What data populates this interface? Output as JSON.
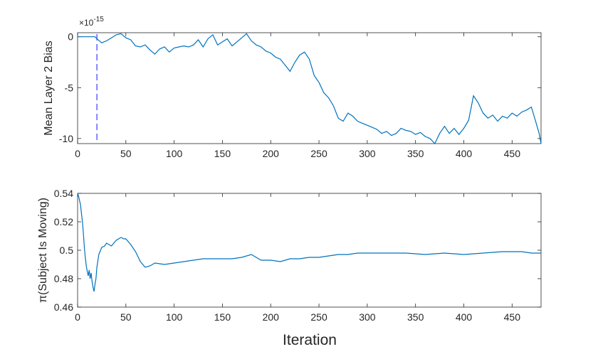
{
  "figure": {
    "xlabel": "Iteration",
    "line_color": "#0072bd",
    "marker_color": "#3a3aff",
    "axis_color": "#262626"
  },
  "chart_data": [
    {
      "type": "line",
      "title": "",
      "ylabel": "Mean Layer 2 Bias",
      "xlabel": "",
      "exponent_label": "×10",
      "exponent_power": "-15",
      "xlim": [
        0,
        480
      ],
      "ylim": [
        -10.5,
        0.4
      ],
      "xticks": [
        0,
        50,
        100,
        150,
        200,
        250,
        300,
        350,
        400,
        450
      ],
      "yticks": [
        -10,
        -5,
        0
      ],
      "ytick_labels": [
        "-10",
        "-5",
        "0"
      ],
      "vline_x": 20,
      "series": [
        {
          "x": [
            0,
            18,
            20,
            25,
            30,
            35,
            40,
            45,
            50,
            55,
            60,
            65,
            70,
            75,
            80,
            85,
            90,
            95,
            100,
            105,
            110,
            115,
            120,
            125,
            130,
            135,
            140,
            145,
            150,
            155,
            160,
            165,
            170,
            175,
            180,
            185,
            190,
            195,
            200,
            205,
            210,
            215,
            220,
            225,
            230,
            235,
            240,
            245,
            250,
            255,
            260,
            265,
            270,
            275,
            280,
            285,
            290,
            295,
            300,
            305,
            310,
            315,
            320,
            325,
            330,
            335,
            340,
            345,
            350,
            355,
            360,
            365,
            370,
            375,
            380,
            385,
            390,
            395,
            400,
            405,
            410,
            415,
            420,
            425,
            430,
            435,
            440,
            445,
            450,
            455,
            460,
            465,
            470,
            475,
            478,
            480
          ],
          "values": [
            0.0,
            0.0,
            -0.2,
            -0.6,
            -0.4,
            -0.1,
            0.2,
            0.3,
            -0.1,
            -0.3,
            -0.9,
            -1.0,
            -0.8,
            -1.3,
            -1.7,
            -1.2,
            -1.0,
            -1.5,
            -1.1,
            -1.0,
            -0.9,
            -1.0,
            -0.8,
            -0.3,
            -1.0,
            -0.2,
            0.2,
            -0.8,
            -0.5,
            -0.2,
            -0.9,
            -0.5,
            -0.1,
            0.3,
            -0.4,
            -0.8,
            -1.0,
            -1.4,
            -1.6,
            -2.0,
            -2.2,
            -2.8,
            -3.4,
            -2.5,
            -1.8,
            -1.5,
            -2.2,
            -3.8,
            -4.5,
            -5.5,
            -6.0,
            -6.8,
            -8.0,
            -8.3,
            -7.5,
            -7.8,
            -8.3,
            -8.5,
            -8.7,
            -8.9,
            -9.1,
            -9.5,
            -9.3,
            -9.7,
            -9.5,
            -9.0,
            -9.2,
            -9.3,
            -9.6,
            -9.4,
            -9.8,
            -10.0,
            -10.5,
            -9.5,
            -8.8,
            -9.5,
            -9.0,
            -9.6,
            -9.0,
            -8.2,
            -5.8,
            -6.5,
            -7.5,
            -8.0,
            -7.7,
            -8.3,
            -7.8,
            -8.0,
            -7.5,
            -7.8,
            -7.4,
            -7.2,
            -6.9,
            -8.5,
            -9.5,
            -10.5
          ]
        }
      ]
    },
    {
      "type": "line",
      "title": "",
      "ylabel": "π(Subject Is Moving)",
      "xlabel": "Iteration",
      "xlim": [
        0,
        480
      ],
      "ylim": [
        0.46,
        0.54
      ],
      "xticks": [
        0,
        50,
        100,
        150,
        200,
        250,
        300,
        350,
        400,
        450
      ],
      "yticks": [
        0.46,
        0.48,
        0.5,
        0.52,
        0.54
      ],
      "ytick_labels": [
        "0.46",
        "0.48",
        "0.5",
        "0.52",
        "0.54"
      ],
      "series": [
        {
          "x": [
            0,
            1,
            2,
            3,
            4,
            5,
            6,
            7,
            8,
            9,
            10,
            11,
            12,
            13,
            14,
            15,
            16,
            17,
            18,
            19,
            20,
            22,
            25,
            28,
            30,
            35,
            40,
            45,
            48,
            50,
            55,
            60,
            65,
            70,
            75,
            80,
            90,
            100,
            110,
            120,
            130,
            140,
            150,
            160,
            170,
            180,
            190,
            200,
            210,
            220,
            230,
            240,
            250,
            260,
            270,
            280,
            290,
            300,
            320,
            340,
            360,
            380,
            400,
            420,
            440,
            460,
            470,
            480
          ],
          "values": [
            0.54,
            0.538,
            0.535,
            0.532,
            0.526,
            0.52,
            0.512,
            0.502,
            0.495,
            0.489,
            0.485,
            0.482,
            0.486,
            0.48,
            0.484,
            0.478,
            0.474,
            0.471,
            0.476,
            0.48,
            0.488,
            0.497,
            0.502,
            0.503,
            0.505,
            0.503,
            0.507,
            0.509,
            0.508,
            0.508,
            0.504,
            0.499,
            0.492,
            0.488,
            0.489,
            0.491,
            0.49,
            0.491,
            0.492,
            0.493,
            0.494,
            0.494,
            0.494,
            0.494,
            0.495,
            0.497,
            0.493,
            0.493,
            0.492,
            0.494,
            0.494,
            0.495,
            0.495,
            0.496,
            0.497,
            0.497,
            0.498,
            0.498,
            0.498,
            0.498,
            0.497,
            0.498,
            0.497,
            0.498,
            0.499,
            0.499,
            0.498,
            0.498
          ]
        }
      ]
    }
  ]
}
